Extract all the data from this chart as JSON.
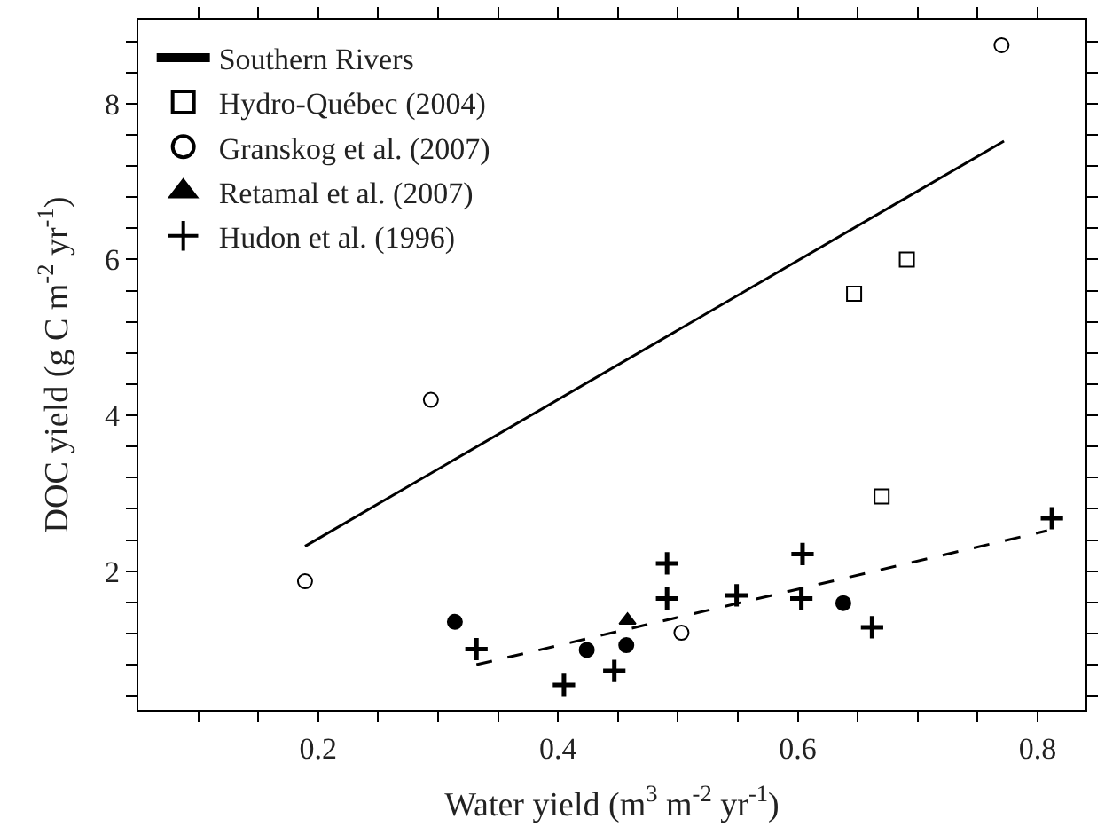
{
  "chart_data": {
    "type": "scatter",
    "xlabel": "Water yield (m$^{3}$ m$^{-2}$ yr$^{-1}$)",
    "ylabel": "DOC yield (g C m$^{-2}$ yr$^{-1}$)",
    "xlim": [
      0.05,
      0.84
    ],
    "ylim": [
      0.22,
      9.08
    ],
    "xticks": [
      {
        "value": 0.1,
        "label": null
      },
      {
        "value": 0.15,
        "label": null
      },
      {
        "value": 0.2,
        "label": "0.2"
      },
      {
        "value": 0.25,
        "label": null
      },
      {
        "value": 0.3,
        "label": null
      },
      {
        "value": 0.35,
        "label": null
      },
      {
        "value": 0.4,
        "label": "0.4"
      },
      {
        "value": 0.45,
        "label": null
      },
      {
        "value": 0.5,
        "label": null
      },
      {
        "value": 0.55,
        "label": null
      },
      {
        "value": 0.6,
        "label": "0.6"
      },
      {
        "value": 0.65,
        "label": null
      },
      {
        "value": 0.7,
        "label": null
      },
      {
        "value": 0.75,
        "label": null
      },
      {
        "value": 0.8,
        "label": "0.8"
      }
    ],
    "yticks": [
      {
        "value": 0.4,
        "label": null
      },
      {
        "value": 0.8,
        "label": null
      },
      {
        "value": 1.2,
        "label": null
      },
      {
        "value": 1.6,
        "label": null
      },
      2,
      {
        "value": 2.4,
        "label": null
      },
      {
        "value": 2.8,
        "label": null
      },
      {
        "value": 3.2,
        "label": null
      },
      {
        "value": 3.6,
        "label": null
      },
      4,
      {
        "value": 4.4,
        "label": null
      },
      {
        "value": 4.8,
        "label": null
      },
      {
        "value": 5.2,
        "label": null
      },
      {
        "value": 5.6,
        "label": null
      },
      6,
      {
        "value": 6.4,
        "label": null
      },
      {
        "value": 6.8,
        "label": null
      },
      {
        "value": 7.2,
        "label": null
      },
      {
        "value": 7.6,
        "label": null
      },
      8,
      {
        "value": 8.4,
        "label": null
      },
      {
        "value": 8.8,
        "label": null
      }
    ],
    "legend": "top left",
    "series": [
      {
        "name": "Southern Rivers",
        "type": "line",
        "marker": "none",
        "line_style": "solid",
        "color": "#000000",
        "x": [
          0.189,
          0.772
        ],
        "values": [
          2.32,
          7.52
        ]
      },
      {
        "name": "Hydro-Québec (2004)",
        "marker": "square",
        "color": "#ffffff",
        "x": [
          0.647,
          0.691,
          0.67
        ],
        "values": [
          5.56,
          6.0,
          2.96
        ]
      },
      {
        "name": "Granskog et al. (2007)",
        "marker": "circle",
        "color": "#ffffff",
        "x": [
          0.77,
          0.294,
          0.189,
          0.503
        ],
        "values": [
          8.75,
          4.2,
          1.87,
          1.21
        ]
      },
      {
        "marker": "circle",
        "color": "#000000",
        "x": [
          0.314,
          0.424,
          0.457,
          0.638
        ],
        "values": [
          1.35,
          0.99,
          1.05,
          1.59
        ]
      },
      {
        "name": "Retamal et al. (2007)",
        "marker": "triangle",
        "color": "#000000",
        "x": [
          0.458
        ],
        "values": [
          1.37
        ]
      },
      {
        "name": "Hudon et al. (1996)",
        "marker": "cross",
        "color": "#000000",
        "x": [
          0.332,
          0.405,
          0.447,
          0.491,
          0.491,
          0.549,
          0.604,
          0.603,
          0.662,
          0.812
        ],
        "values": [
          1.0,
          0.54,
          0.72,
          2.1,
          1.65,
          1.69,
          2.22,
          1.65,
          1.28,
          2.68
        ]
      },
      {
        "type": "line",
        "marker": "none",
        "line_style": "dashed",
        "color": "#000000",
        "x": [
          0.332,
          0.808
        ],
        "values": [
          0.8,
          2.52
        ]
      }
    ]
  }
}
